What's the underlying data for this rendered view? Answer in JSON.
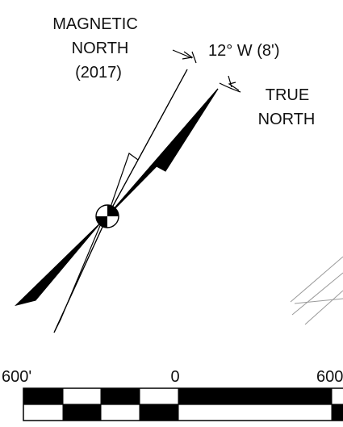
{
  "north_arrow": {
    "magnetic_label_lines": [
      "MAGNETIC",
      "NORTH",
      "(2017)"
    ],
    "true_label_lines": [
      "TRUE",
      "NORTH"
    ],
    "declination": "12° W (8')"
  },
  "scale_bar": {
    "left_label": "600'",
    "center_label": "0",
    "right_label": "600"
  },
  "colors": {
    "ink": "#000000",
    "background": "#ffffff",
    "faint_lines": "#9a9a9a"
  }
}
